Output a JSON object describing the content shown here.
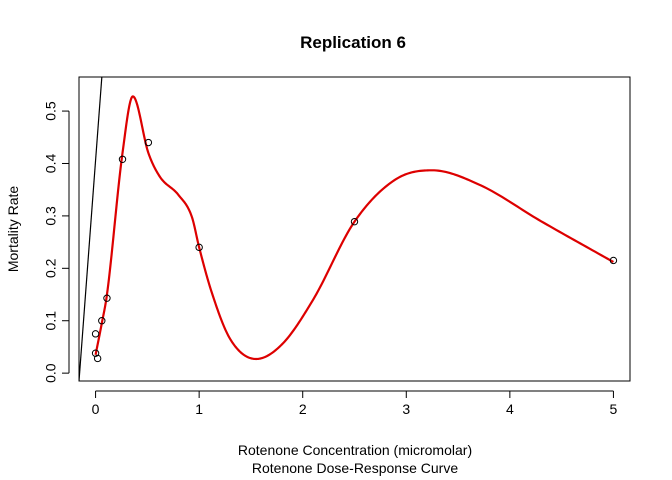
{
  "chart_data": {
    "type": "scatter",
    "title": "Replication 6",
    "xlabel": "Rotenone Concentration (micromolar)",
    "sub": "Rotenone Dose-Response Curve",
    "ylabel": "Mortality Rate",
    "xlim": [
      -0.16,
      5.16
    ],
    "ylim": [
      -0.015,
      0.565
    ],
    "x_ticks": [
      0,
      1,
      2,
      3,
      4,
      5
    ],
    "y_ticks": [
      0.0,
      0.1,
      0.2,
      0.3,
      0.4,
      0.5
    ],
    "x_tick_labels": [
      "0",
      "1",
      "2",
      "3",
      "4",
      "5"
    ],
    "y_tick_labels": [
      "0.0",
      "0.1",
      "0.2",
      "0.3",
      "0.4",
      "0.5"
    ],
    "grid": false,
    "points": [
      {
        "x": 0.0,
        "y": 0.075
      },
      {
        "x": 0.0,
        "y": 0.038
      },
      {
        "x": 0.02,
        "y": 0.028
      },
      {
        "x": 0.06,
        "y": 0.1
      },
      {
        "x": 0.11,
        "y": 0.143
      },
      {
        "x": 0.26,
        "y": 0.408
      },
      {
        "x": 0.51,
        "y": 0.44
      },
      {
        "x": 1.0,
        "y": 0.24
      },
      {
        "x": 2.5,
        "y": 0.289
      },
      {
        "x": 5.0,
        "y": 0.215
      }
    ],
    "series": [
      {
        "type": "line",
        "color": "#000000",
        "x": [
          -0.16,
          0.07
        ],
        "y": [
          -0.015,
          0.59
        ]
      },
      {
        "type": "smooth",
        "color": "#dd0000",
        "x": [
          0.0,
          0.06,
          0.11,
          0.26,
          0.36,
          0.51,
          0.62,
          0.8,
          0.93,
          1.0,
          1.12,
          1.3,
          1.55,
          1.8,
          2.1,
          2.5,
          2.9,
          3.25,
          3.7,
          4.3,
          5.0
        ],
        "y": [
          0.035,
          0.095,
          0.15,
          0.42,
          0.528,
          0.42,
          0.375,
          0.34,
          0.298,
          0.24,
          0.155,
          0.065,
          0.027,
          0.055,
          0.14,
          0.289,
          0.37,
          0.387,
          0.36,
          0.29,
          0.212
        ]
      }
    ]
  }
}
